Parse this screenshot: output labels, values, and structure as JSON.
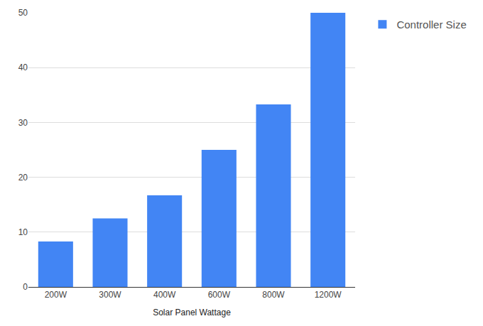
{
  "chart_data": {
    "type": "bar",
    "xlabel": "Solar Panel Wattage",
    "categories": [
      "200W",
      "300W",
      "400W",
      "600W",
      "800W",
      "1200W"
    ],
    "series": [
      {
        "name": "Controller Size",
        "color": "#4285f4",
        "values": [
          8.3,
          12.5,
          16.7,
          25,
          33.3,
          50
        ]
      }
    ],
    "ylim": [
      0,
      50
    ],
    "yticks": [
      0,
      10,
      20,
      30,
      40,
      50
    ],
    "grid": true,
    "legend": "right"
  }
}
